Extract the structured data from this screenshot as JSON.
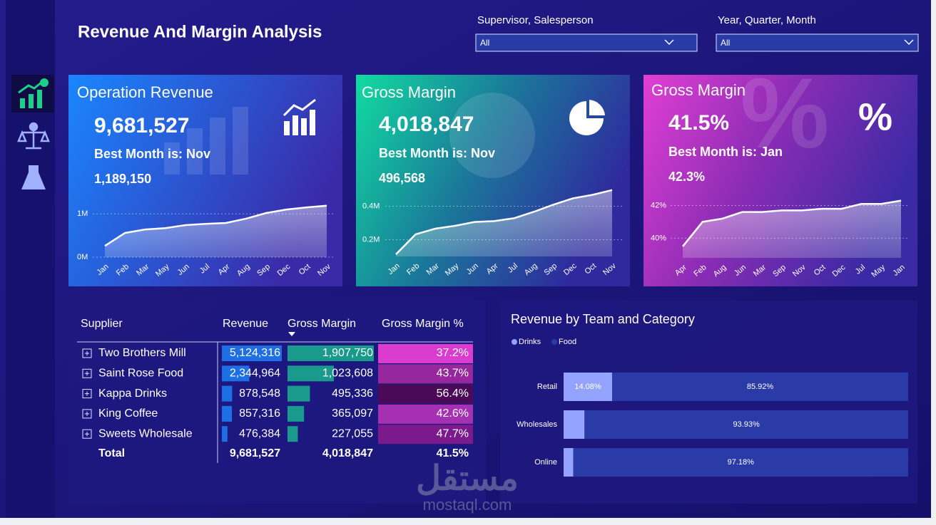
{
  "header": {
    "title": "Revenue And Margin Analysis"
  },
  "filters": [
    {
      "label": "Supervisor, Salesperson",
      "value": "All"
    },
    {
      "label": "Year, Quarter, Month",
      "value": "All"
    }
  ],
  "cards": [
    {
      "title": "Operation Revenue",
      "value": "9,681,527",
      "best_month": "Best Month is: Nov",
      "best_value": "1,189,150"
    },
    {
      "title": "Gross Margin",
      "value": "4,018,847",
      "best_month": "Best Month is: Nov",
      "best_value": "496,568"
    },
    {
      "title": "Gross Margin",
      "value": "41.5%",
      "best_month": "Best Month is: Jan",
      "best_value": "42.3%"
    }
  ],
  "table": {
    "columns": [
      "Supplier",
      "Revenue",
      "Gross Margin",
      "Gross Margin %"
    ],
    "rows": [
      {
        "supplier": "Two Brothers Mill",
        "revenue": {
          "value": 5124316,
          "label": "5,124,316"
        },
        "gross_margin": {
          "value": 1907750,
          "label": "1,907,750"
        },
        "gross_margin_pct": {
          "value": 37.2,
          "label": "37.2%",
          "color": "#d93ccf"
        }
      },
      {
        "supplier": "Saint Rose Food",
        "revenue": {
          "value": 2344964,
          "label": "2,344,964"
        },
        "gross_margin": {
          "value": 1023608,
          "label": "1,023,608"
        },
        "gross_margin_pct": {
          "value": 43.7,
          "label": "43.7%",
          "color": "#97279c"
        }
      },
      {
        "supplier": "Kappa Drinks",
        "revenue": {
          "value": 878548,
          "label": "878,548"
        },
        "gross_margin": {
          "value": 495336,
          "label": "495,336"
        },
        "gross_margin_pct": {
          "value": 56.4,
          "label": "56.4%",
          "color": "#4a0a58"
        }
      },
      {
        "supplier": "King Coffee",
        "revenue": {
          "value": 857316,
          "label": "857,316"
        },
        "gross_margin": {
          "value": 365097,
          "label": "365,097"
        },
        "gross_margin_pct": {
          "value": 42.6,
          "label": "42.6%",
          "color": "#a530b2"
        }
      },
      {
        "supplier": "Sweets Wholesale",
        "revenue": {
          "value": 476384,
          "label": "476,384"
        },
        "gross_margin": {
          "value": 227055,
          "label": "227,055"
        },
        "gross_margin_pct": {
          "value": 47.7,
          "label": "47.7%",
          "color": "#7b1a8c"
        }
      }
    ],
    "total": {
      "label": "Total",
      "revenue": "9,681,527",
      "gross_margin": "4,018,847",
      "gross_margin_pct": "41.5%"
    }
  },
  "chart_data": [
    {
      "type": "area",
      "categories": [
        "Jan",
        "Feb",
        "Mar",
        "May",
        "Jun",
        "Jul",
        "Apr",
        "Aug",
        "Sep",
        "Dec",
        "Oct",
        "Nov"
      ],
      "values": [
        260000,
        560000,
        640000,
        670000,
        740000,
        770000,
        790000,
        890000,
        1020000,
        1100000,
        1150000,
        1189150
      ],
      "ylim": [
        0,
        1300000
      ],
      "yticks": [
        {
          "value": 0,
          "label": "0M"
        },
        {
          "value": 1000000,
          "label": "1M"
        }
      ],
      "color": "#ffffff",
      "grid": true
    },
    {
      "type": "area",
      "categories": [
        "Jan",
        "Feb",
        "Mar",
        "May",
        "Jun",
        "Apr",
        "Jul",
        "Aug",
        "Sep",
        "Dec",
        "Oct",
        "Nov"
      ],
      "values": [
        113000,
        232000,
        266000,
        283000,
        306000,
        311000,
        328000,
        366000,
        409000,
        447000,
        468000,
        496568
      ],
      "ylim": [
        100000,
        500000
      ],
      "yticks": [
        {
          "value": 200000,
          "label": "0.2M"
        },
        {
          "value": 400000,
          "label": "0.4M"
        }
      ],
      "color": "#ffffff",
      "grid": true
    },
    {
      "type": "area",
      "categories": [
        "Apr",
        "Feb",
        "Aug",
        "Jun",
        "Mar",
        "Sep",
        "Nov",
        "Oct",
        "Dec",
        "Jul",
        "May",
        "Jan"
      ],
      "values": [
        39.5,
        41.0,
        41.2,
        41.6,
        41.6,
        41.7,
        41.7,
        41.8,
        41.8,
        42.1,
        42.1,
        42.3
      ],
      "ylim": [
        38.8,
        42.5
      ],
      "yticks": [
        {
          "value": 40,
          "label": "40%"
        },
        {
          "value": 42,
          "label": "42%"
        }
      ],
      "color": "#ffffff",
      "grid": true
    },
    {
      "type": "bar",
      "title": "Revenue by Team and Category",
      "horizontal": true,
      "stacked": true,
      "categories": [
        "Retail",
        "Wholesales",
        "Online"
      ],
      "series": [
        {
          "name": "Drinks",
          "color": "#93a3ff",
          "values": [
            14.08,
            6.07,
            2.82
          ],
          "value_labels": [
            "14.08%",
            null,
            null
          ]
        },
        {
          "name": "Food",
          "color": "#2a3aa6",
          "values": [
            85.92,
            93.93,
            97.18
          ],
          "value_labels": [
            "85.92%",
            "93.93%",
            "97.18%"
          ]
        }
      ],
      "xlim": [
        0,
        100
      ],
      "legend": "top-left"
    }
  ],
  "watermark": {
    "arabic": "مستقل",
    "latin": "mostaql.com"
  }
}
